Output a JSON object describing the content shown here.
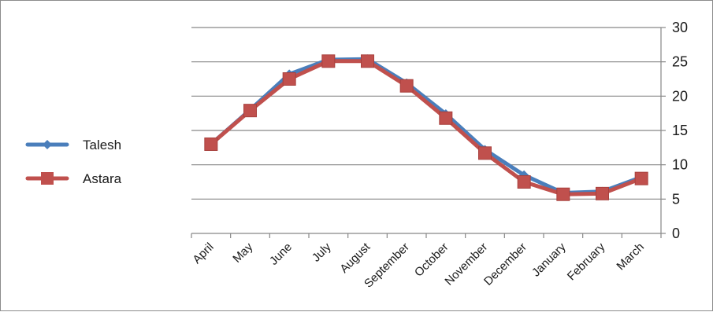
{
  "chart_data": {
    "type": "line",
    "categories": [
      "April",
      "May",
      "June",
      "July",
      "August",
      "September",
      "October",
      "November",
      "December",
      "January",
      "February",
      "March"
    ],
    "series": [
      {
        "name": "Talesh",
        "color": "#4a7ebb",
        "marker": "diamond",
        "values": [
          13.0,
          18.0,
          23.2,
          25.3,
          25.4,
          21.9,
          17.4,
          12.2,
          8.5,
          5.9,
          6.1,
          8.2
        ]
      },
      {
        "name": "Astara",
        "color": "#c0504d",
        "marker": "square",
        "values": [
          13.0,
          17.9,
          22.5,
          25.1,
          25.1,
          21.5,
          16.8,
          11.7,
          7.5,
          5.7,
          5.8,
          8.0
        ]
      }
    ],
    "ylim": [
      0,
      30
    ],
    "yticks": [
      0,
      5,
      10,
      15,
      20,
      25,
      30
    ],
    "grid": true,
    "y_axis_position": "right",
    "legend_position": "left",
    "title": "",
    "xlabel": "",
    "ylabel": ""
  }
}
